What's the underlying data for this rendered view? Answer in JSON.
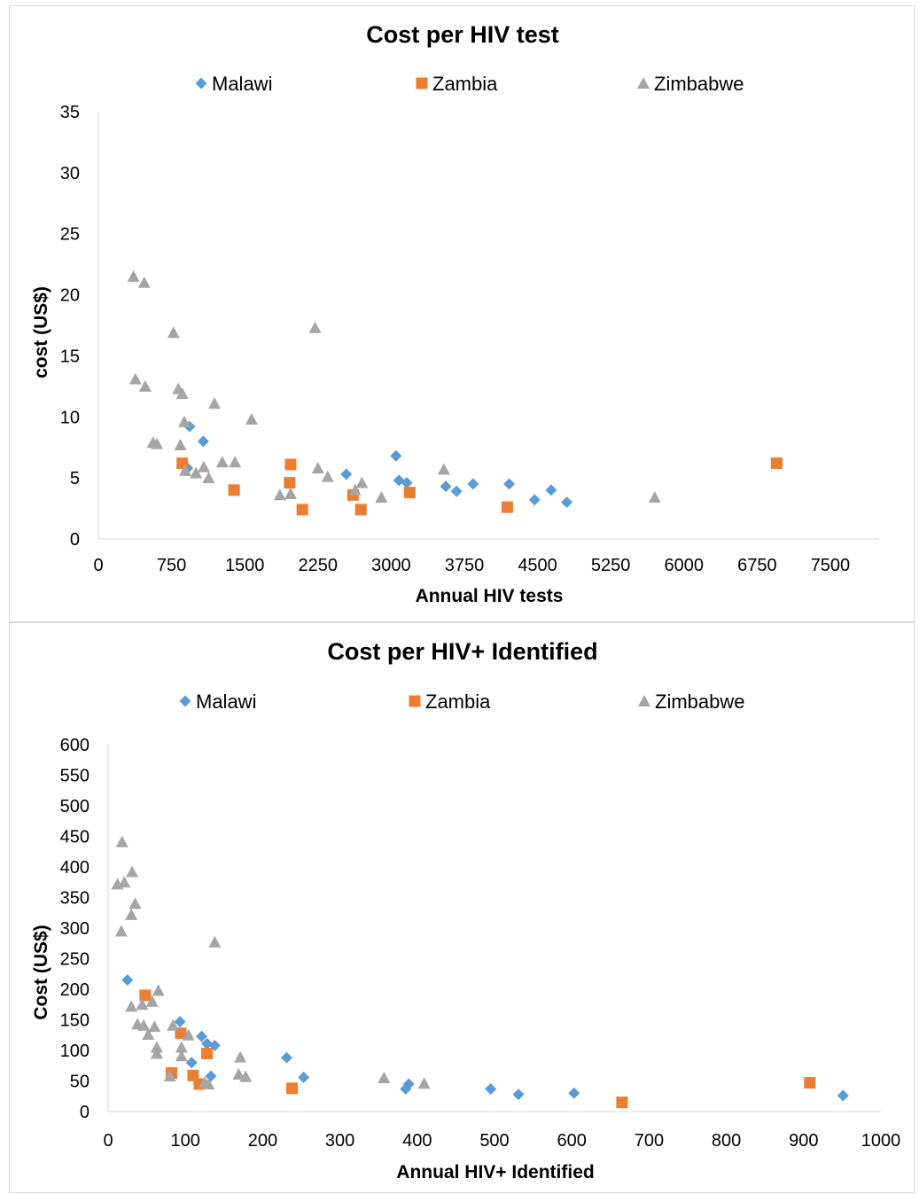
{
  "chart_data": [
    {
      "type": "scatter",
      "title": "Cost per HIV test",
      "xlabel": "Annual HIV tests",
      "ylabel": "cost (US$)",
      "xlim": [
        0,
        8000
      ],
      "ylim": [
        0,
        35
      ],
      "xticks": [
        0,
        750,
        1500,
        2250,
        3000,
        3750,
        4500,
        5250,
        6000,
        6750,
        7500
      ],
      "yticks": [
        0,
        5,
        10,
        15,
        20,
        25,
        30,
        35
      ],
      "grid": false,
      "legend": "top",
      "series": [
        {
          "name": "Malawi",
          "marker": "diamond",
          "color": "#5b9bd5",
          "points": [
            [
              915,
              5.8
            ],
            [
              935,
              9.2
            ],
            [
              1075,
              8.0
            ],
            [
              2540,
              5.3
            ],
            [
              3050,
              6.8
            ],
            [
              3080,
              4.8
            ],
            [
              3160,
              4.6
            ],
            [
              3560,
              4.3
            ],
            [
              3670,
              3.9
            ],
            [
              3840,
              4.5
            ],
            [
              4210,
              4.5
            ],
            [
              4470,
              3.2
            ],
            [
              4640,
              4.0
            ],
            [
              4800,
              3.0
            ]
          ]
        },
        {
          "name": "Zambia",
          "marker": "square",
          "color": "#ed7d31",
          "points": [
            [
              860,
              6.2
            ],
            [
              1390,
              4.0
            ],
            [
              1960,
              4.6
            ],
            [
              1970,
              6.1
            ],
            [
              2090,
              2.4
            ],
            [
              2610,
              3.6
            ],
            [
              2690,
              2.4
            ],
            [
              3190,
              3.8
            ],
            [
              4190,
              2.6
            ],
            [
              6950,
              6.2
            ]
          ]
        },
        {
          "name": "Zimbabwe",
          "marker": "triangle",
          "color": "#a5a5a5",
          "points": [
            [
              360,
              21.5
            ],
            [
              470,
              21.0
            ],
            [
              770,
              16.9
            ],
            [
              2220,
              17.3
            ],
            [
              380,
              13.1
            ],
            [
              480,
              12.5
            ],
            [
              820,
              12.3
            ],
            [
              860,
              11.9
            ],
            [
              1190,
              11.1
            ],
            [
              1570,
              9.8
            ],
            [
              880,
              9.6
            ],
            [
              560,
              7.9
            ],
            [
              600,
              7.8
            ],
            [
              840,
              7.7
            ],
            [
              890,
              5.6
            ],
            [
              1000,
              5.4
            ],
            [
              1080,
              5.9
            ],
            [
              1130,
              5.0
            ],
            [
              1270,
              6.3
            ],
            [
              1400,
              6.3
            ],
            [
              1860,
              3.6
            ],
            [
              1970,
              3.7
            ],
            [
              2250,
              5.8
            ],
            [
              2350,
              5.1
            ],
            [
              2630,
              4.0
            ],
            [
              2700,
              4.6
            ],
            [
              2900,
              3.4
            ],
            [
              3540,
              5.7
            ],
            [
              5700,
              3.4
            ]
          ]
        }
      ]
    },
    {
      "type": "scatter",
      "title": "Cost per HIV+ Identified",
      "xlabel": "Annual HIV+ Identified",
      "ylabel": "Cost (US$)",
      "xlim": [
        0,
        1000
      ],
      "ylim": [
        0,
        600
      ],
      "xticks": [
        0,
        100,
        200,
        300,
        400,
        500,
        600,
        700,
        800,
        900,
        1000
      ],
      "yticks": [
        0,
        50,
        100,
        150,
        200,
        250,
        300,
        350,
        400,
        450,
        500,
        550,
        600
      ],
      "grid": false,
      "legend": "top",
      "series": [
        {
          "name": "Malawi",
          "marker": "diamond",
          "color": "#5b9bd5",
          "points": [
            [
              25,
              215
            ],
            [
              93,
              147
            ],
            [
              108,
              80
            ],
            [
              121,
              123
            ],
            [
              128,
              111
            ],
            [
              133,
              58
            ],
            [
              138,
              108
            ],
            [
              231,
              88
            ],
            [
              253,
              56
            ],
            [
              385,
              37
            ],
            [
              389,
              45
            ],
            [
              495,
              37
            ],
            [
              531,
              28
            ],
            [
              603,
              30
            ],
            [
              951,
              26
            ]
          ]
        },
        {
          "name": "Zambia",
          "marker": "square",
          "color": "#ed7d31",
          "points": [
            [
              48,
              190
            ],
            [
              82,
              63
            ],
            [
              94,
              128
            ],
            [
              110,
              59
            ],
            [
              118,
              45
            ],
            [
              128,
              95
            ],
            [
              238,
              38
            ],
            [
              665,
              15
            ],
            [
              908,
              47
            ]
          ]
        },
        {
          "name": "Zimbabwe",
          "marker": "triangle",
          "color": "#a5a5a5",
          "points": [
            [
              12,
              372
            ],
            [
              17,
              295
            ],
            [
              18,
              441
            ],
            [
              21,
              375
            ],
            [
              30,
              322
            ],
            [
              31,
              392
            ],
            [
              35,
              340
            ],
            [
              30,
              172
            ],
            [
              38,
              143
            ],
            [
              44,
              175
            ],
            [
              46,
              141
            ],
            [
              52,
              126
            ],
            [
              57,
              180
            ],
            [
              60,
              139
            ],
            [
              63,
              105
            ],
            [
              63,
              95
            ],
            [
              65,
              198
            ],
            [
              80,
              58
            ],
            [
              84,
              141
            ],
            [
              95,
              105
            ],
            [
              95,
              91
            ],
            [
              104,
              125
            ],
            [
              125,
              48
            ],
            [
              130,
              45
            ],
            [
              138,
              277
            ],
            [
              169,
              61
            ],
            [
              171,
              89
            ],
            [
              178,
              57
            ],
            [
              357,
              55
            ],
            [
              409,
              46
            ]
          ]
        }
      ]
    }
  ]
}
